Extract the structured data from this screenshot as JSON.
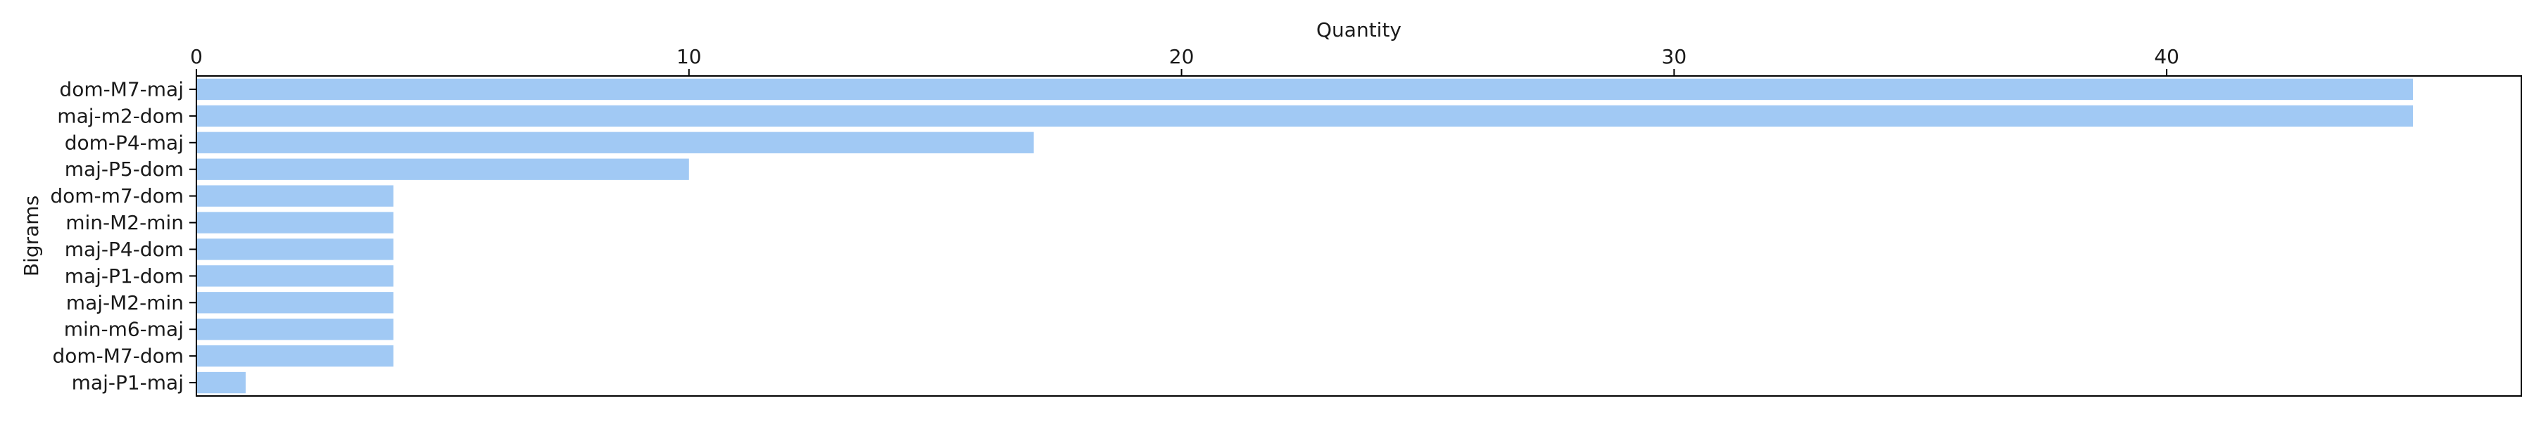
{
  "chart_data": {
    "type": "bar",
    "orientation": "horizontal",
    "xlabel": "Quantity",
    "ylabel": "Bigrams",
    "xlim": [
      0,
      47.2
    ],
    "x_ticks": [
      0,
      10,
      20,
      30,
      40
    ],
    "x_axis_position": "top",
    "grid": false,
    "bar_color": "#a1c9f4",
    "categories": [
      "dom-M7-maj",
      "maj-m2-dom",
      "dom-P4-maj",
      "maj-P5-dom",
      "dom-m7-dom",
      "min-M2-min",
      "maj-P4-dom",
      "maj-P1-dom",
      "maj-M2-min",
      "min-m6-maj",
      "dom-M7-dom",
      "maj-P1-maj"
    ],
    "values": [
      45,
      45,
      17,
      10,
      4,
      4,
      4,
      4,
      4,
      4,
      4,
      1
    ]
  }
}
